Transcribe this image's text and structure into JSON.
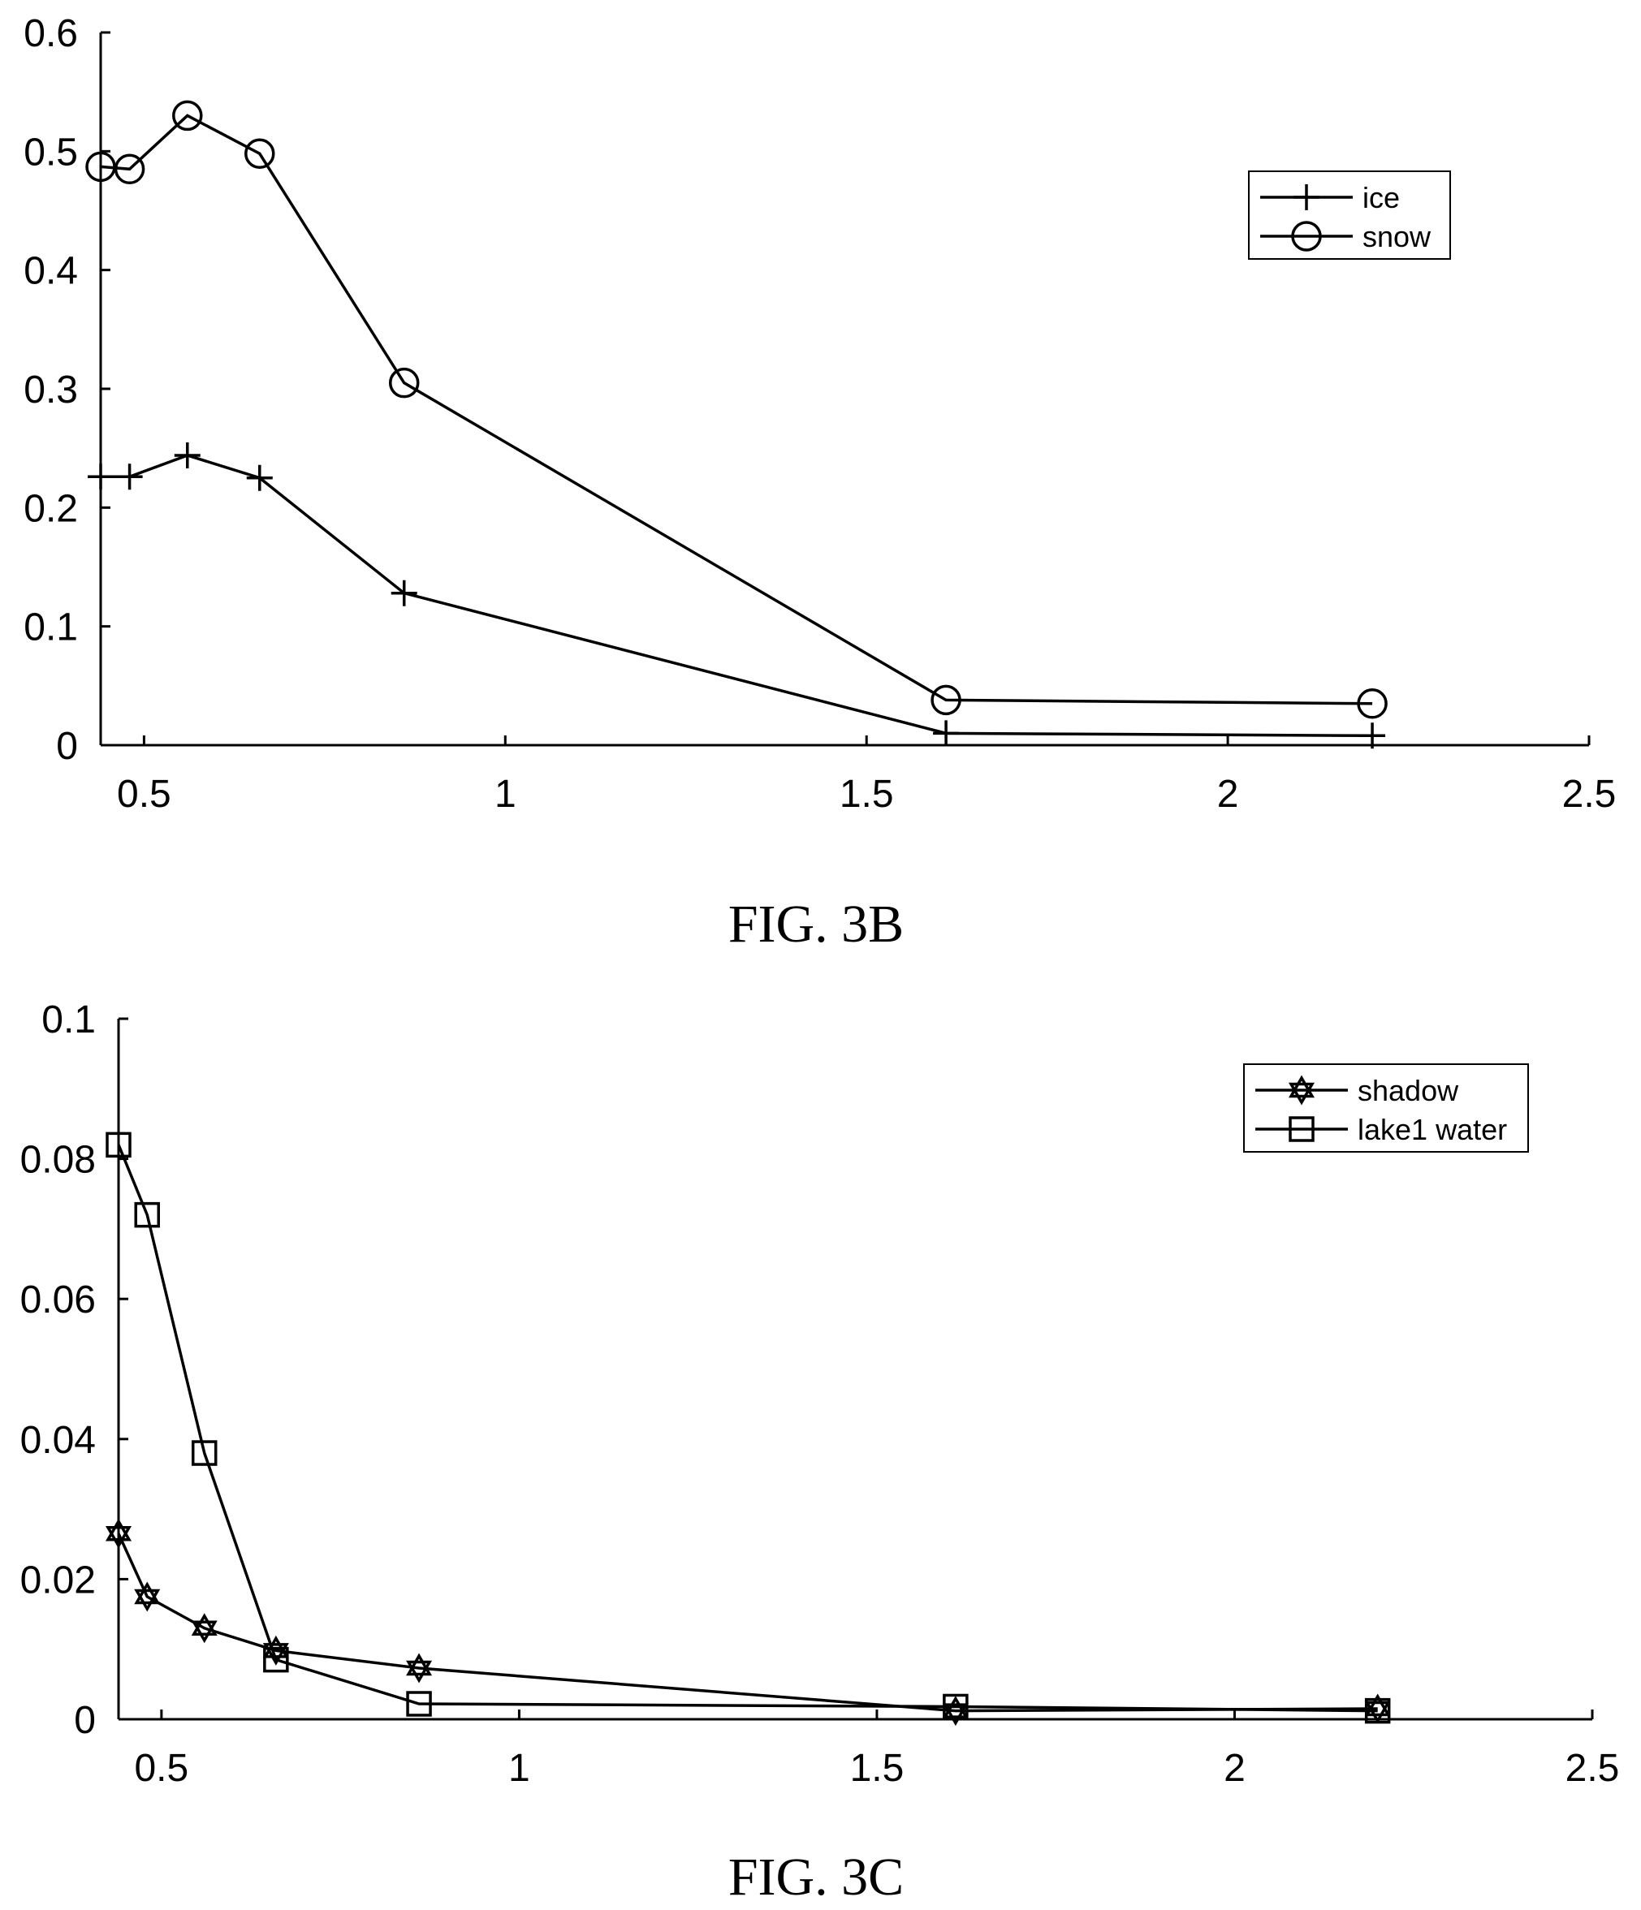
{
  "chart_data": [
    {
      "type": "line",
      "caption": "FIG. 3B",
      "x_ticks": [
        "0.5",
        "1",
        "1.5",
        "2",
        "2.5"
      ],
      "y_ticks": [
        "0",
        "0.1",
        "0.2",
        "0.3",
        "0.4",
        "0.5",
        "0.6"
      ],
      "xlim": [
        0.44,
        2.5
      ],
      "ylim": [
        0,
        0.6
      ],
      "legend_position": "top-right",
      "x": [
        0.44,
        0.48,
        0.56,
        0.66,
        0.86,
        1.61,
        2.2
      ],
      "series": [
        {
          "name": "ice",
          "marker": "plus",
          "values": [
            0.226,
            0.226,
            0.244,
            0.225,
            0.128,
            0.01,
            0.008
          ]
        },
        {
          "name": "snow",
          "marker": "circle",
          "values": [
            0.487,
            0.485,
            0.53,
            0.498,
            0.305,
            0.038,
            0.035
          ]
        }
      ]
    },
    {
      "type": "line",
      "caption": "FIG. 3C",
      "x_ticks": [
        "0.5",
        "1",
        "1.5",
        "2",
        "2.5"
      ],
      "y_ticks": [
        "0",
        "0.02",
        "0.04",
        "0.06",
        "0.08",
        "0.1"
      ],
      "xlim": [
        0.44,
        2.5
      ],
      "ylim": [
        0,
        0.1
      ],
      "legend_position": "top-right",
      "x": [
        0.44,
        0.48,
        0.56,
        0.66,
        0.86,
        1.61,
        2.2
      ],
      "series": [
        {
          "name": "shadow",
          "marker": "star",
          "values": [
            0.0265,
            0.0175,
            0.013,
            0.0098,
            0.0073,
            0.0012,
            0.0015
          ]
        },
        {
          "name": "lake1 water",
          "marker": "square",
          "values": [
            0.082,
            0.072,
            0.038,
            0.0085,
            0.0022,
            0.0018,
            0.0012
          ]
        }
      ]
    }
  ]
}
